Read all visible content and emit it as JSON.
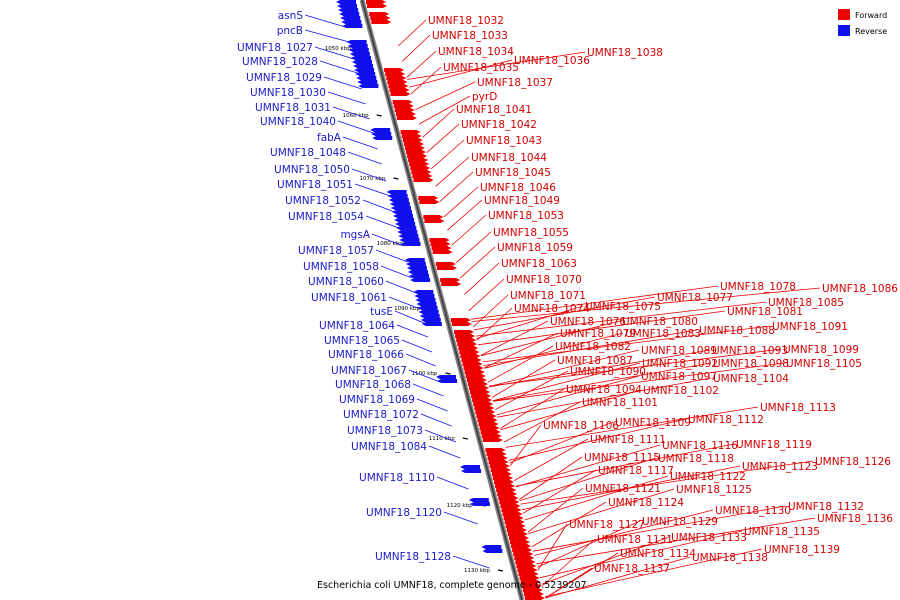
{
  "caption": "Escherichia coli UMNF18, complete genome - 0.5239207",
  "legend": {
    "forward": {
      "label": "Forward",
      "color": "#ee0000"
    },
    "reverse": {
      "label": "Reverse",
      "color": "#1010ee"
    }
  },
  "ticks": [
    "1050 kbp",
    "1060 kbp",
    "1070 kbp",
    "1080 kbp",
    "1090 kbp",
    "1100 kbp",
    "1110 kbp",
    "1120 kbp",
    "1130 kbp"
  ],
  "forward_genes": [
    "UMNF18_1032",
    "UMNF18_1033",
    "UMNF18_1034",
    "UMNF18_1035",
    "UMNF18_1036",
    "UMNF18_1038",
    "UMNF18_1037",
    "pyrD",
    "UMNF18_1041",
    "UMNF18_1042",
    "UMNF18_1043",
    "UMNF18_1044",
    "UMNF18_1045",
    "UMNF18_1046",
    "UMNF18_1049",
    "UMNF18_1053",
    "UMNF18_1055",
    "UMNF18_1059",
    "UMNF18_1063",
    "UMNF18_1070",
    "UMNF18_1071",
    "UMNF18_1074",
    "UMNF18_1075",
    "UMNF18_1077",
    "UMNF18_1078",
    "UMNF18_1086",
    "UMNF18_1081",
    "UMNF18_1085",
    "UMNF18_1076",
    "UMNF18_1080",
    "UMNF18_1079",
    "UMNF18_1083",
    "UMNF18_1088",
    "UMNF18_1091",
    "UMNF18_1082",
    "UMNF18_1089",
    "UMNF18_1093",
    "UMNF18_1099",
    "UMNF18_1087",
    "UMNF18_1092",
    "UMNF18_1098",
    "UMNF18_1105",
    "UMNF18_1090",
    "UMNF18_1097",
    "UMNF18_1104",
    "UMNF18_1094",
    "UMNF18_1102",
    "UMNF18_1101",
    "UMNF18_1113",
    "UMNF18_1106",
    "UMNF18_1109",
    "UMNF18_1112",
    "UMNF18_1111",
    "UMNF18_1116",
    "UMNF18_1119",
    "UMNF18_1115",
    "UMNF18_1118",
    "UMNF18_1126",
    "UMNF18_1117",
    "UMNF18_1123",
    "UMNF18_1122",
    "UMNF18_1121",
    "UMNF18_1125",
    "UMNF18_1124",
    "UMNF18_1132",
    "UMNF18_1130",
    "UMNF18_1136",
    "UMNF18_1127",
    "UMNF18_1129",
    "UMNF18_1135",
    "UMNF18_1131",
    "UMNF18_1133",
    "UMNF18_1139",
    "UMNF18_1134",
    "UMNF18_1138",
    "UMNF18_1137"
  ],
  "reverse_genes": [
    "asnS",
    "pncB",
    "UMNF18_1027",
    "UMNF18_1028",
    "UMNF18_1029",
    "UMNF18_1030",
    "UMNF18_1031",
    "UMNF18_1040",
    "fabA",
    "UMNF18_1048",
    "UMNF18_1050",
    "UMNF18_1051",
    "UMNF18_1052",
    "UMNF18_1054",
    "mgsA",
    "UMNF18_1057",
    "UMNF18_1058",
    "UMNF18_1060",
    "UMNF18_1061",
    "tusE",
    "UMNF18_1064",
    "UMNF18_1065",
    "UMNF18_1066",
    "UMNF18_1067",
    "UMNF18_1068",
    "UMNF18_1069",
    "UMNF18_1072",
    "UMNF18_1073",
    "UMNF18_1084",
    "UMNF18_1110",
    "UMNF18_1120",
    "UMNF18_1128"
  ]
}
